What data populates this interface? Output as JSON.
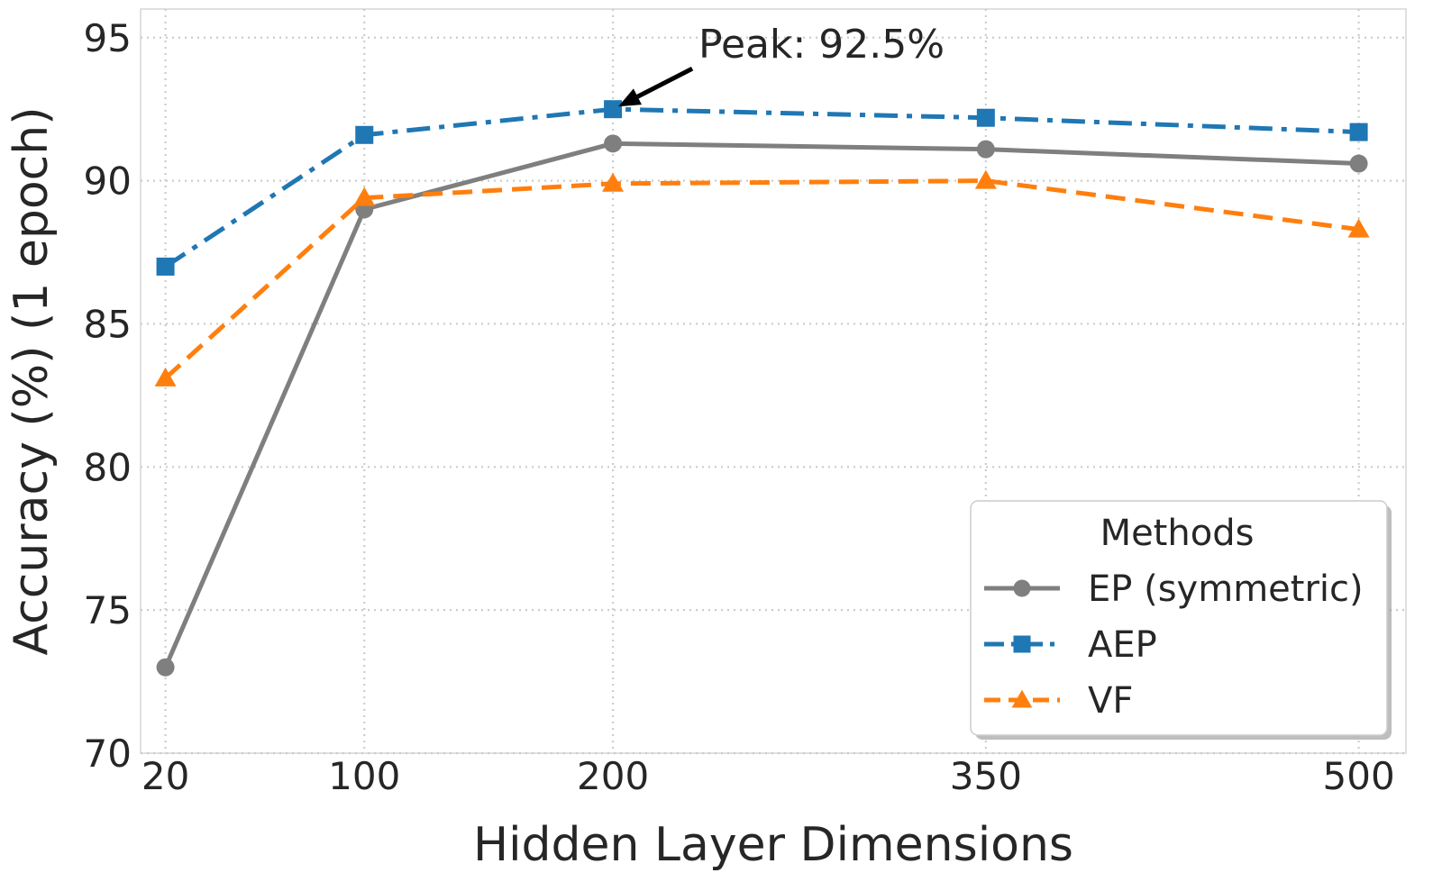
{
  "chart_data": {
    "type": "line",
    "title": "",
    "xlabel": "Hidden Layer Dimensions",
    "ylabel": "Accuracy (%) (1 epoch)",
    "x": [
      20,
      100,
      200,
      350,
      500
    ],
    "x_tick_labels": [
      "20",
      "100",
      "200",
      "350",
      "500"
    ],
    "xlim": [
      10,
      519
    ],
    "ylim": [
      70,
      96
    ],
    "y_ticks": [
      70,
      75,
      80,
      85,
      90,
      95
    ],
    "y_tick_labels": [
      "70",
      "75",
      "80",
      "85",
      "90",
      "95"
    ],
    "grid": true,
    "legend": {
      "title": "Methods",
      "position": "lower-right"
    },
    "series": [
      {
        "name": "EP (symmetric)",
        "values": [
          73.0,
          89.0,
          91.3,
          91.1,
          90.6
        ],
        "color": "#7f7f7f",
        "marker": "circle",
        "linestyle": "solid"
      },
      {
        "name": "AEP",
        "values": [
          87.0,
          91.6,
          92.5,
          92.2,
          91.7
        ],
        "color": "#1f77b4",
        "marker": "square",
        "linestyle": "dashdot"
      },
      {
        "name": "VF",
        "values": [
          83.1,
          89.4,
          89.9,
          90.0,
          88.3
        ],
        "color": "#ff7f0e",
        "marker": "triangle",
        "linestyle": "dashed"
      }
    ],
    "annotations": [
      {
        "text": "Peak: 92.5%",
        "x": 200,
        "y": 92.5,
        "series": "AEP",
        "color": "#2f4f4f"
      }
    ]
  }
}
